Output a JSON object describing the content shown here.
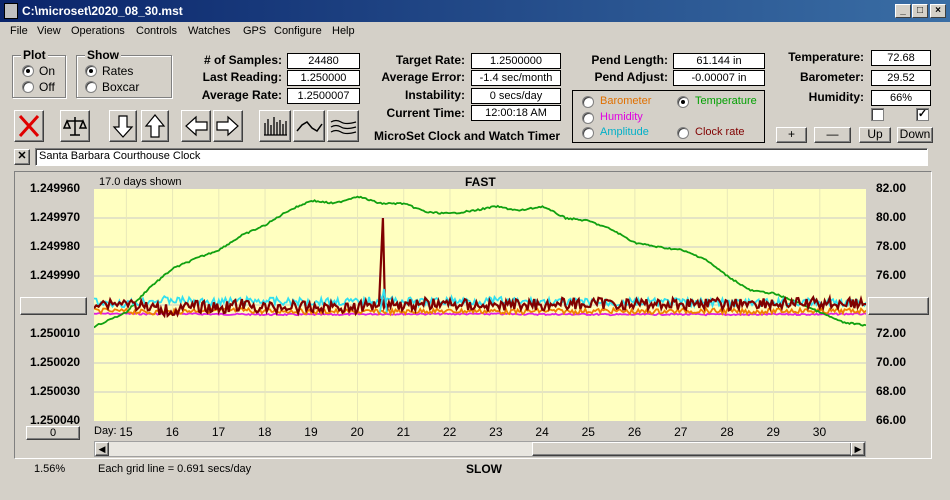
{
  "window": {
    "title": "C:\\microset\\2020_08_30.mst"
  },
  "menu": [
    "File",
    "View",
    "Operations",
    "Controls",
    "Watches",
    "GPS",
    "Configure",
    "Help"
  ],
  "plot_group": {
    "label": "Plot",
    "on": "On",
    "off": "Off",
    "selected": "On"
  },
  "show_group": {
    "label": "Show",
    "rates": "Rates",
    "boxcar": "Boxcar",
    "selected": "Rates"
  },
  "stats": {
    "samples_label": "# of Samples:",
    "samples": "24480",
    "last_label": "Last Reading:",
    "last": "1.250000",
    "avg_rate_label": "Average Rate:",
    "avg_rate": "1.2500007",
    "target_label": "Target Rate:",
    "target": "1.2500000",
    "avg_err_label": "Average Error:",
    "avg_err": "-1.4 sec/month",
    "instab_label": "Instability:",
    "instab": "0 secs/day",
    "time_label": "Current Time:",
    "time": "12:00:18 AM",
    "pend_len_label": "Pend Length:",
    "pend_len": "61.144 in",
    "pend_adj_label": "Pend Adjust:",
    "pend_adj": "-0.00007 in",
    "temp_label": "Temperature:",
    "temp": "72.68",
    "baro_label": "Barometer:",
    "baro": "29.52",
    "hum_label": "Humidity:",
    "hum": "66%"
  },
  "app_label": "MicroSet Clock and Watch Timer",
  "aux": {
    "barometer": "Barometer",
    "temperature": "Temperature",
    "humidity": "Humidity",
    "amplitude": "Amplitude",
    "clock_rate": "Clock rate",
    "selected": "Temperature",
    "colors": {
      "barometer": "#e07000",
      "temperature": "#00a000",
      "humidity": "#e000e0",
      "amplitude": "#00d0d0",
      "clock_rate": "#800000"
    }
  },
  "side_buttons": {
    "plus": "+",
    "minus": "—",
    "up": "Up",
    "down": "Down"
  },
  "checks": [
    false,
    true
  ],
  "clock_name": "Santa Barbara Courthouse Clock",
  "chart": {
    "days_shown": "17.0 days shown",
    "fast": "FAST",
    "slow": "SLOW",
    "left_ticks": [
      "1.249960",
      "1.249970",
      "1.249980",
      "1.249990",
      "1.250000",
      "1.250010",
      "1.250020",
      "1.250030",
      "1.250040"
    ],
    "right_ticks": [
      "82.00",
      "80.00",
      "78.00",
      "76.00",
      "74.00",
      "72.00",
      "70.00",
      "68.00",
      "66.00"
    ],
    "day_label": "Day:",
    "days": [
      "15",
      "16",
      "17",
      "18",
      "19",
      "20",
      "21",
      "22",
      "23",
      "24",
      "25",
      "26",
      "27",
      "28",
      "29",
      "30"
    ],
    "grid_note": "Each grid line = 0.691 secs/day",
    "zoom": "1.56%",
    "offset_button": "0"
  },
  "chart_data": {
    "type": "line",
    "x": [
      14.3,
      15.0,
      15.5,
      16.0,
      16.5,
      17.0,
      17.5,
      18.0,
      18.5,
      19.0,
      19.5,
      20.0,
      20.5,
      21.0,
      21.5,
      22.0,
      22.5,
      23.0,
      23.5,
      24.0,
      24.5,
      25.0,
      25.5,
      26.0,
      26.5,
      27.0,
      27.5,
      28.0,
      28.5,
      29.0,
      29.5,
      30.0,
      30.5,
      31.0
    ],
    "series": [
      {
        "name": "Clock rate",
        "axis": "left",
        "values": [
          1.2499995,
          1.249999,
          1.250001,
          1.250002,
          1.2500005,
          1.250001,
          1.25,
          1.250001,
          1.2500005,
          1.250001,
          1.2500005,
          1.250001,
          1.249999,
          1.25,
          1.2499995,
          1.2499997,
          1.25,
          1.2500003,
          1.2499997,
          1.2499998,
          1.2499995,
          1.2499997,
          1.2499993,
          1.2499998,
          1.2499995,
          1.2499997,
          1.2499992,
          1.25,
          1.249999,
          1.2499996,
          1.2499995,
          1.2499993,
          1.2499993,
          1.2499997
        ]
      },
      {
        "name": "Temperature",
        "axis": "right",
        "values": [
          72.5,
          73.5,
          75.2,
          76.5,
          77.2,
          77.8,
          78.8,
          79.5,
          80.5,
          81.2,
          81.0,
          81.5,
          81.0,
          81.0,
          80.4,
          80.3,
          80.5,
          80.8,
          80.5,
          80.8,
          80.0,
          79.8,
          79.2,
          78.3,
          78.0,
          77.8,
          77.2,
          76.0,
          75.0,
          74.8,
          74.2,
          73.5,
          72.8,
          72.6
        ]
      },
      {
        "name": "Temperature (barometer)",
        "axis": "left",
        "values": [
          1.250002,
          1.2500022,
          1.2500025,
          1.2500024,
          1.2500018,
          1.250002,
          1.2500018,
          1.2500022,
          1.250002,
          1.2500024,
          1.2500022,
          1.2500025,
          1.2500022,
          1.2500024,
          1.250002,
          1.2500022,
          1.250002,
          1.2500022,
          1.2500024,
          1.250002,
          1.2500022,
          1.2500021,
          1.250002,
          1.2500024,
          1.2500022,
          1.2500021,
          1.250002,
          1.2500022,
          1.2500023,
          1.2500021,
          1.2500019,
          1.2500022,
          1.2500021,
          1.2500019
        ]
      },
      {
        "name": "Amplitude",
        "axis": "left",
        "values": [
          1.249999,
          1.2499995,
          1.2499985,
          1.2499983,
          1.2499988,
          1.249999,
          1.2499987,
          1.2499985,
          1.249999,
          1.2499988,
          1.2499987,
          1.249999,
          1.2499982,
          1.2499987,
          1.249999,
          1.2499985,
          1.2499987,
          1.2499985,
          1.249999,
          1.2499988,
          1.2499992,
          1.249999,
          1.2499993,
          1.249999,
          1.2499991,
          1.249999,
          1.2499992,
          1.2499991,
          1.2499995,
          1.2499992,
          1.249999,
          1.2499993,
          1.2499991,
          1.249999
        ]
      },
      {
        "name": "Humidity",
        "axis": "left",
        "values": [
          1.250003,
          1.250003,
          1.2500031,
          1.250003,
          1.2500031,
          1.2500032,
          1.2500032,
          1.2500033,
          1.2500033,
          1.2500033,
          1.2500033,
          1.2500032,
          1.2500031,
          1.2500031,
          1.2500031,
          1.2500031,
          1.2500031,
          1.2500031,
          1.2500031,
          1.2500032,
          1.2500032,
          1.2500032,
          1.2500033,
          1.2500033,
          1.2500032,
          1.2500032,
          1.2500033,
          1.2500033,
          1.2500033,
          1.2500032,
          1.2500032,
          1.2500032,
          1.2500031,
          1.2500031
        ]
      }
    ],
    "ylim_left": [
      1.24996,
      1.25004
    ],
    "ylim_right": [
      66,
      82
    ],
    "xlim": [
      14.3,
      31.0
    ]
  }
}
